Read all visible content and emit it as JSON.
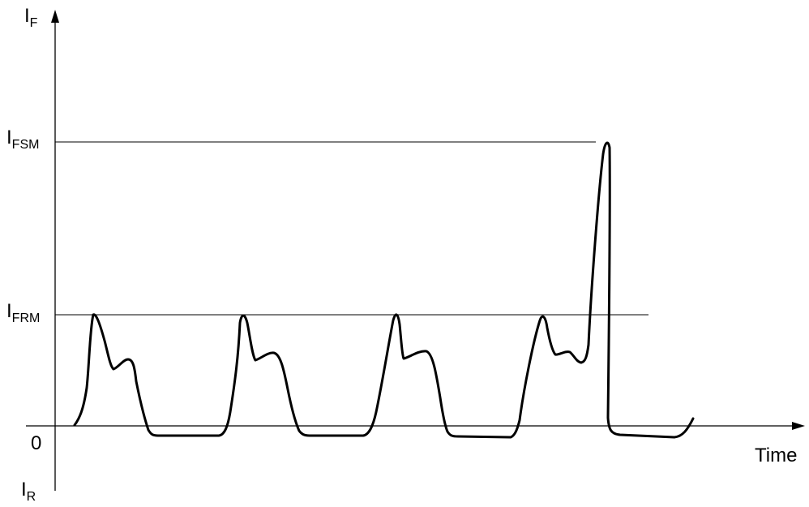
{
  "diagram": {
    "axes": {
      "y_positive": {
        "main": "I",
        "sub": "F"
      },
      "y_negative": {
        "main": "I",
        "sub": "R"
      },
      "origin": "0",
      "x": "Time"
    },
    "levels": {
      "surge": {
        "main": "I",
        "sub": "FSM"
      },
      "repetitive": {
        "main": "I",
        "sub": "FRM"
      }
    }
  },
  "colors": {
    "ink": "#000000"
  }
}
